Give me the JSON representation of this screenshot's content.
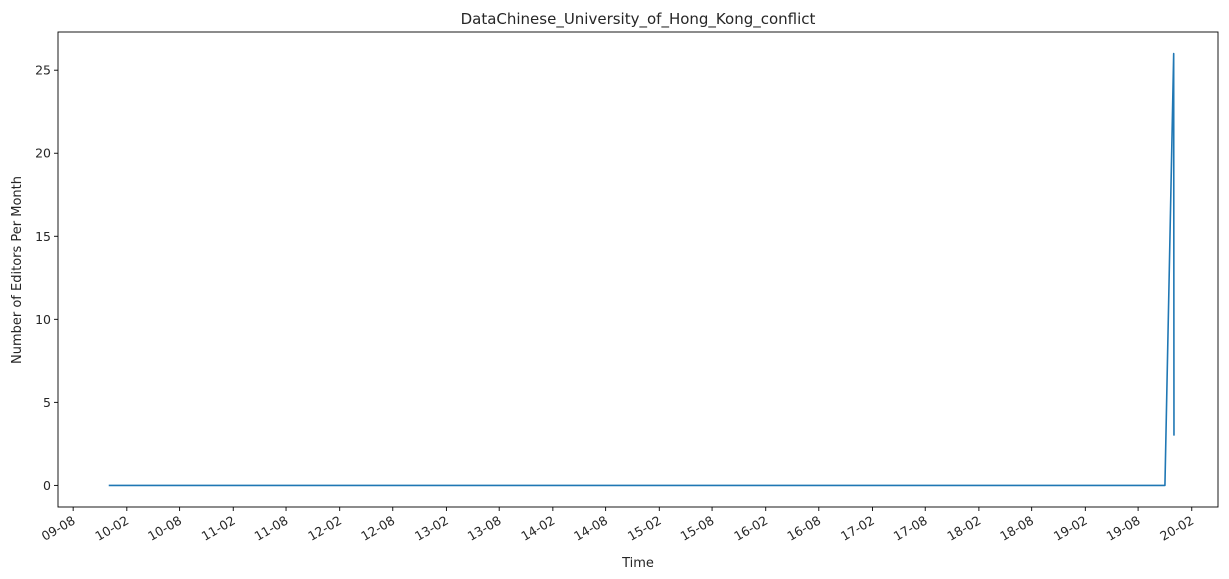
{
  "chart_data": {
    "type": "line",
    "title": "DataChinese_University_of_Hong_Kong_conflict",
    "xlabel": "Time",
    "ylabel": "Number of Editors Per Month",
    "ylim": [
      -1.3,
      27.3
    ],
    "xlim": [
      "2009-06-10",
      "2020-05-01"
    ],
    "grid": false,
    "x_ticks": [
      {
        "date": "2009-08-01",
        "label": "09-08"
      },
      {
        "date": "2010-02-01",
        "label": "10-02"
      },
      {
        "date": "2010-08-01",
        "label": "10-08"
      },
      {
        "date": "2011-02-01",
        "label": "11-02"
      },
      {
        "date": "2011-08-01",
        "label": "11-08"
      },
      {
        "date": "2012-02-01",
        "label": "12-02"
      },
      {
        "date": "2012-08-01",
        "label": "12-08"
      },
      {
        "date": "2013-02-01",
        "label": "13-02"
      },
      {
        "date": "2013-08-01",
        "label": "13-08"
      },
      {
        "date": "2014-02-01",
        "label": "14-02"
      },
      {
        "date": "2014-08-01",
        "label": "14-08"
      },
      {
        "date": "2015-02-01",
        "label": "15-02"
      },
      {
        "date": "2015-08-01",
        "label": "15-08"
      },
      {
        "date": "2016-02-01",
        "label": "16-02"
      },
      {
        "date": "2016-08-01",
        "label": "16-08"
      },
      {
        "date": "2017-02-01",
        "label": "17-02"
      },
      {
        "date": "2017-08-01",
        "label": "17-08"
      },
      {
        "date": "2018-02-01",
        "label": "18-02"
      },
      {
        "date": "2018-08-01",
        "label": "18-08"
      },
      {
        "date": "2019-02-01",
        "label": "19-02"
      },
      {
        "date": "2019-08-01",
        "label": "19-08"
      },
      {
        "date": "2020-02-01",
        "label": "20-02"
      }
    ],
    "y_ticks": [
      0,
      5,
      10,
      15,
      20,
      25
    ],
    "series": [
      {
        "color": "#1f77b4",
        "x": [
          "2009-12-01",
          "2019-10-01",
          "2019-11-01",
          "2019-12-01",
          "2019-12-02"
        ],
        "values": [
          0,
          0,
          0,
          26,
          3
        ]
      }
    ]
  }
}
